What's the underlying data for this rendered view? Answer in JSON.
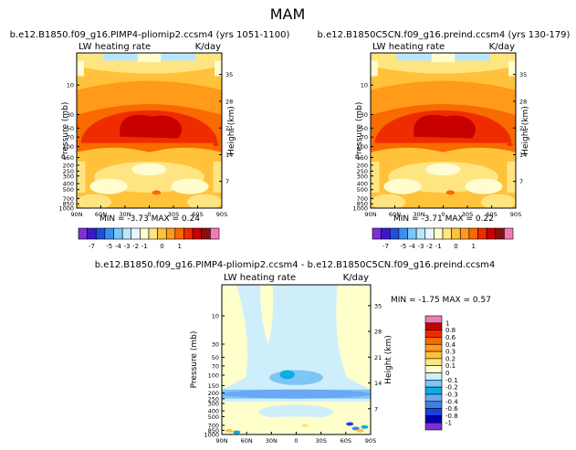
{
  "page_title": "MAM",
  "colors": {
    "abs_scale": [
      "#7b2fd6",
      "#3a1ac8",
      "#1e4fe0",
      "#3c8ef0",
      "#79c6f7",
      "#b9e6fb",
      "#e6f6fc",
      "#fffcd0",
      "#ffe582",
      "#ffc23a",
      "#ff9a1a",
      "#f96a00",
      "#ee2c00",
      "#c80000",
      "#8b0f0f",
      "#f27ab3"
    ],
    "diff_scale": [
      "#7b2fd6",
      "#0000b4",
      "#1d3fe0",
      "#3f7fe8",
      "#6aa8f2",
      "#0aaee0",
      "#7cc6f5",
      "#cfeefc",
      "#ffffcc",
      "#ffe680",
      "#ffc23a",
      "#ff9a1a",
      "#f96a00",
      "#ee2c00",
      "#c80000",
      "#f27ab3"
    ]
  },
  "chart_data": [
    {
      "type": "heatmap",
      "name": "model-panel",
      "title": "b.e12.B1850.f09_g16.PIMP4-pliomip2.ccsm4  (yrs 1051-1100)",
      "left_label": "LW heating rate",
      "right_label": "K/day",
      "ylabel": "Pressure (mb)",
      "y2label": "Height (km)",
      "x_ticks": [
        "90N",
        "60N",
        "30N",
        "0",
        "30S",
        "60S",
        "90S"
      ],
      "y_ticks": [
        "10",
        "30",
        "50",
        "70",
        "100",
        "150",
        "200",
        "250",
        "300",
        "400",
        "500",
        "700",
        "850",
        "1000"
      ],
      "y2_ticks": [
        "35",
        "28",
        "21",
        "14",
        "7"
      ],
      "stats": "MIN =   -3.73   MAX =    0.24",
      "min": -3.73,
      "max": 0.24,
      "colorbar_labels": [
        "-7",
        "-5",
        "-4",
        "-3",
        "-2",
        "-1",
        "0",
        "1"
      ]
    },
    {
      "type": "heatmap",
      "name": "control-panel",
      "title": "b.e12.B1850C5CN.f09_g16.preind.ccsm4  (yrs 130-179)",
      "left_label": "LW heating rate",
      "right_label": "K/day",
      "ylabel": "Pressure (mb)",
      "y2label": "Height (km)",
      "x_ticks": [
        "90N",
        "60N",
        "30N",
        "0",
        "30S",
        "60S",
        "90S"
      ],
      "y_ticks": [
        "10",
        "30",
        "50",
        "70",
        "100",
        "150",
        "200",
        "250",
        "300",
        "400",
        "500",
        "700",
        "850",
        "1000"
      ],
      "y2_ticks": [
        "35",
        "28",
        "21",
        "14",
        "7"
      ],
      "stats": "MIN =   -3.71   MAX =    0.22",
      "min": -3.71,
      "max": 0.22,
      "colorbar_labels": [
        "-7",
        "-5",
        "-4",
        "-3",
        "-2",
        "-1",
        "0",
        "1"
      ]
    },
    {
      "type": "heatmap",
      "name": "difference-panel",
      "title": "b.e12.B1850.f09_g16.PIMP4-pliomip2.ccsm4 - b.e12.B1850C5CN.f09_g16.preind.ccsm4",
      "left_label": "LW heating rate",
      "right_label": "K/day",
      "ylabel": "Pressure (mb)",
      "y2label": "Height (km)",
      "x_ticks": [
        "90N",
        "60N",
        "30N",
        "0",
        "30S",
        "60S",
        "90S"
      ],
      "y_ticks": [
        "10",
        "30",
        "50",
        "70",
        "100",
        "150",
        "200",
        "250",
        "300",
        "400",
        "500",
        "700",
        "850",
        "1000"
      ],
      "y2_ticks": [
        "35",
        "28",
        "21",
        "14",
        "7"
      ],
      "stats": "MIN =   -1.75   MAX =    0.57",
      "min": -1.75,
      "max": 0.57,
      "colorbar_labels": [
        "1",
        "0.8",
        "0.6",
        "0.4",
        "0.3",
        "0.2",
        "0.1",
        "0",
        "-0.1",
        "-0.2",
        "-0.3",
        "-0.4",
        "-0.6",
        "-0.8",
        "-1"
      ]
    }
  ]
}
